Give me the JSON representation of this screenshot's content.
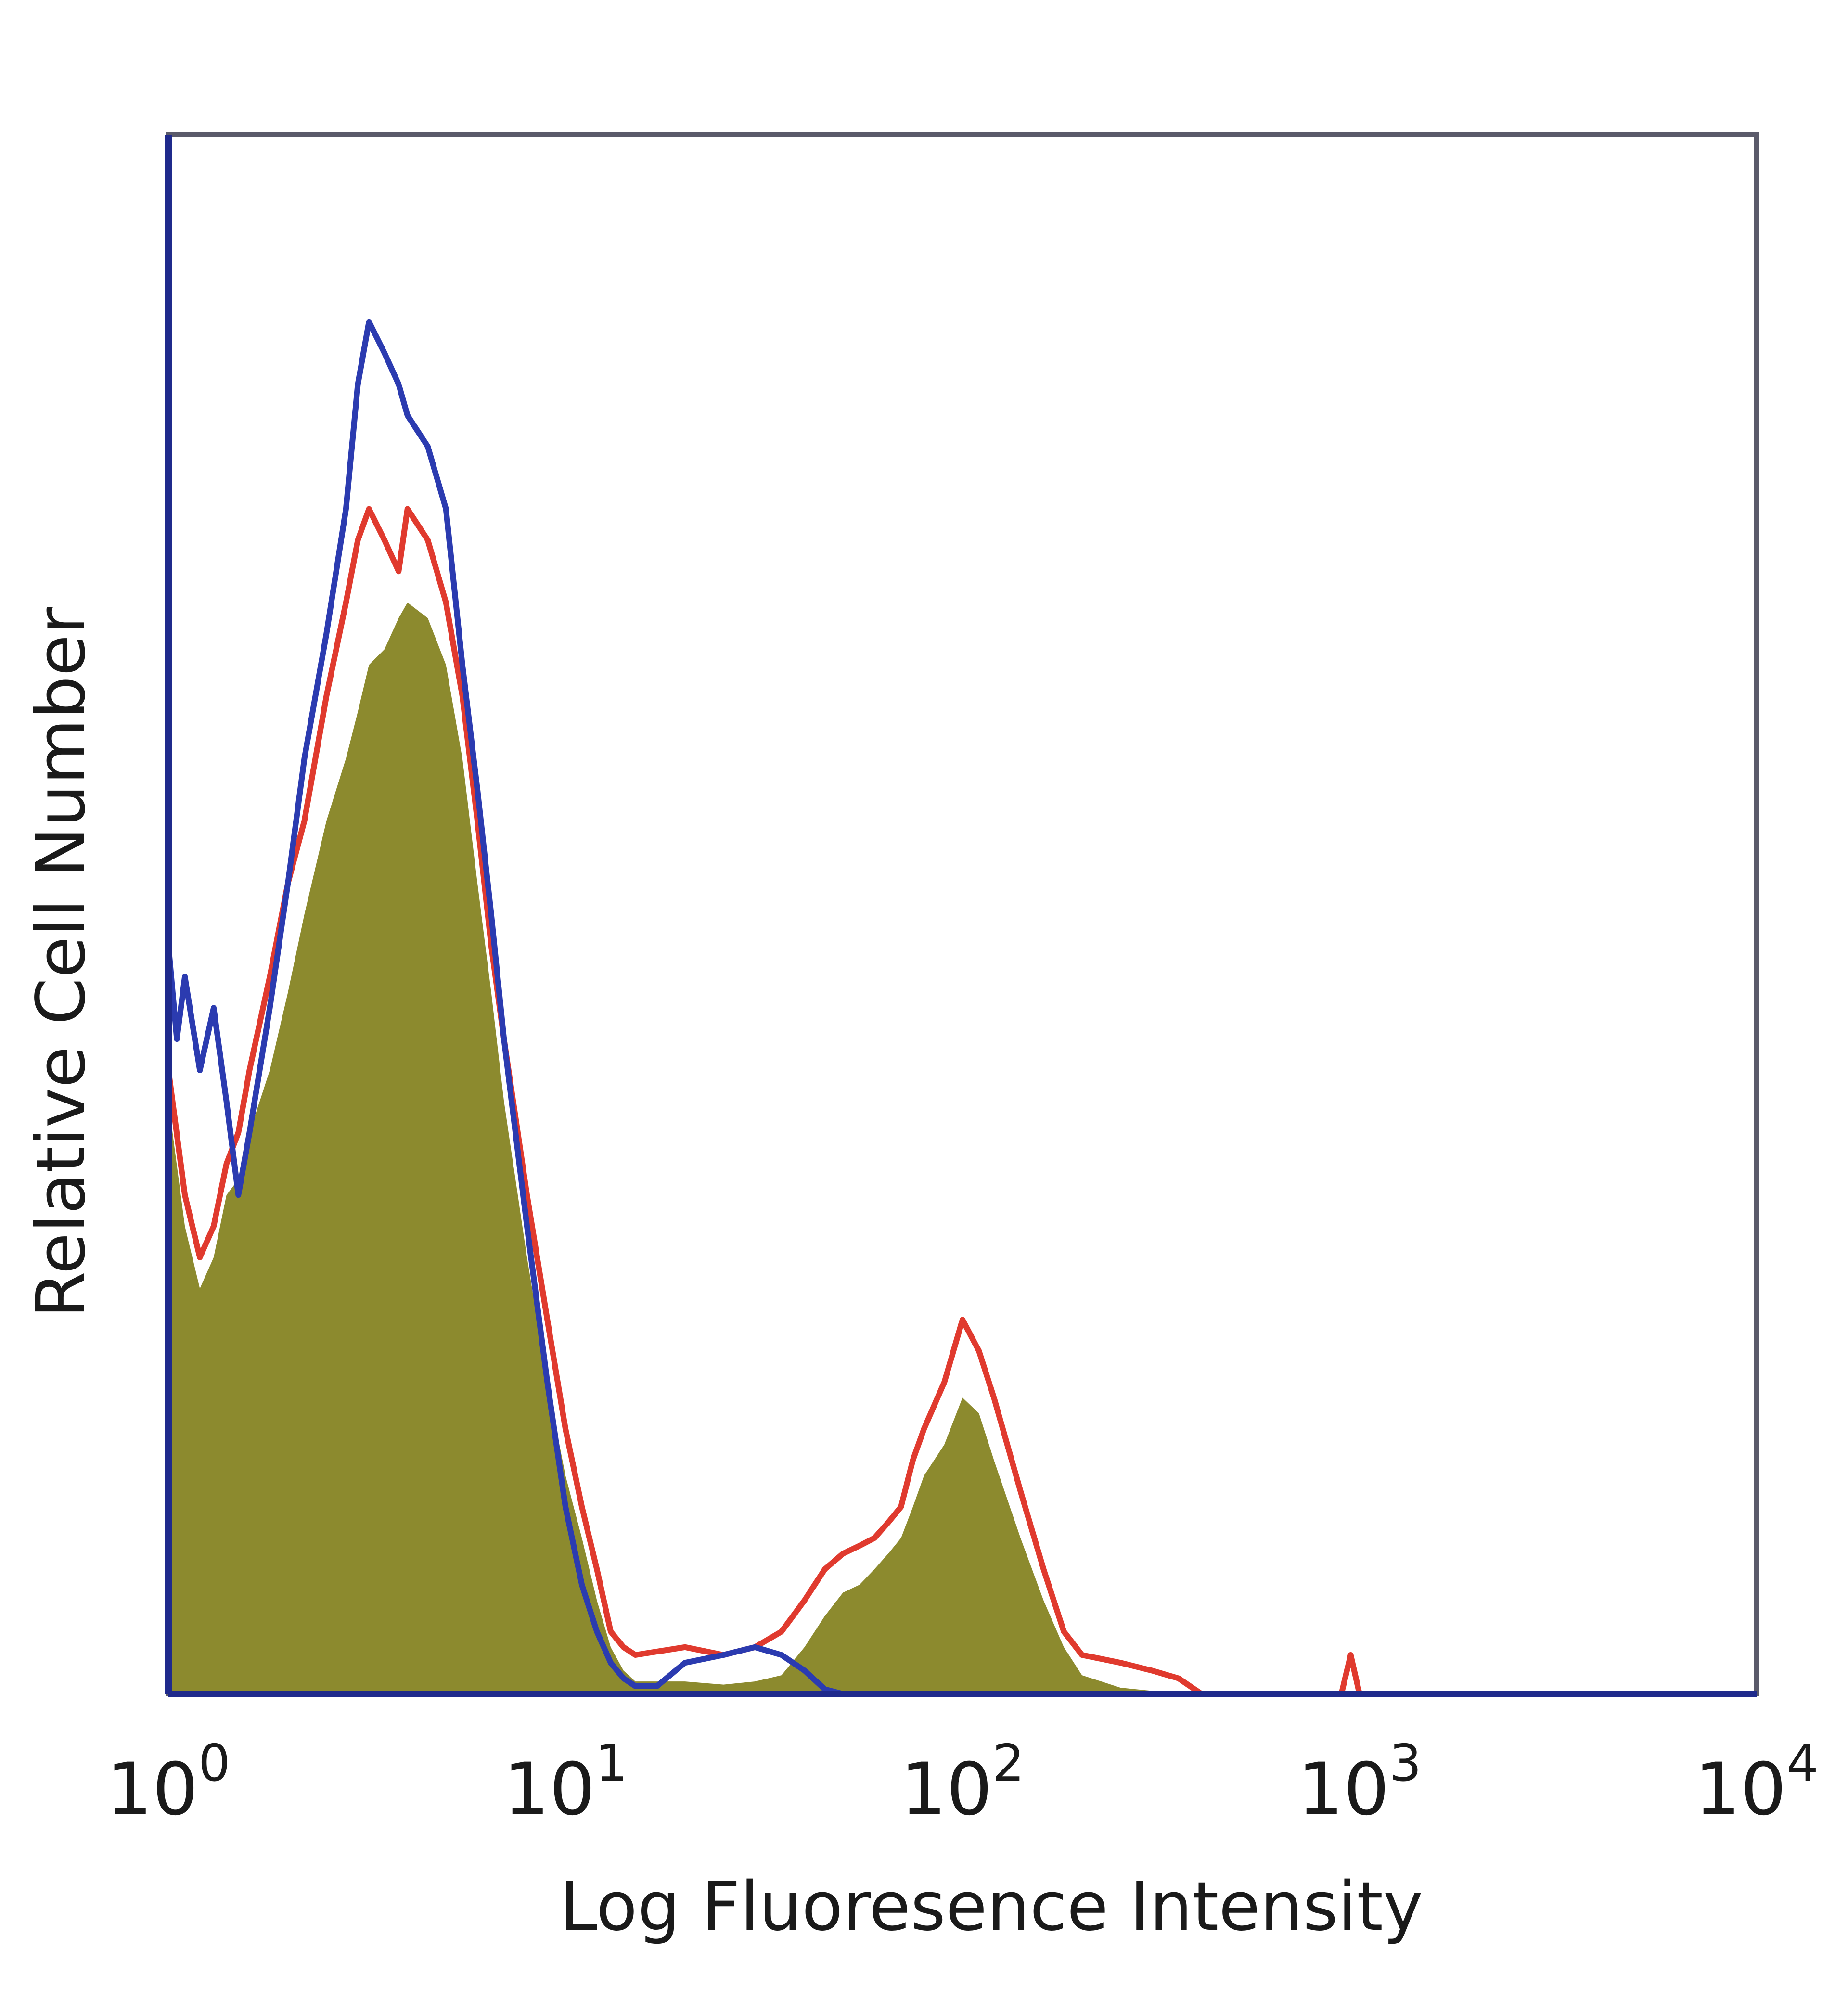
{
  "chart_data": {
    "type": "area",
    "title": "",
    "xlabel": "Log Fluoresence Intensity",
    "ylabel": "Relative Cell Number",
    "x_scale": "log",
    "xlim": [
      1,
      10000
    ],
    "ylim": [
      0,
      100
    ],
    "grid": false,
    "legend": "none",
    "x_ticks": [
      {
        "base": "10",
        "exp": "0",
        "value": 1
      },
      {
        "base": "10",
        "exp": "1",
        "value": 10
      },
      {
        "base": "10",
        "exp": "2",
        "value": 100
      },
      {
        "base": "10",
        "exp": "3",
        "value": 1000
      },
      {
        "base": "10",
        "exp": "4",
        "value": 10000
      }
    ],
    "series": [
      {
        "color": "#8c8a2e",
        "style": "filled",
        "points": [
          [
            1,
            38
          ],
          [
            1.1,
            30
          ],
          [
            1.2,
            26
          ],
          [
            1.3,
            28
          ],
          [
            1.4,
            32
          ],
          [
            1.5,
            33
          ],
          [
            1.6,
            36
          ],
          [
            1.8,
            40
          ],
          [
            2,
            45
          ],
          [
            2.2,
            50
          ],
          [
            2.5,
            56
          ],
          [
            2.8,
            60
          ],
          [
            3,
            63
          ],
          [
            3.2,
            66
          ],
          [
            3.5,
            67
          ],
          [
            3.8,
            69
          ],
          [
            4,
            70
          ],
          [
            4.5,
            69
          ],
          [
            5,
            66
          ],
          [
            5.5,
            60
          ],
          [
            6,
            52
          ],
          [
            6.5,
            45
          ],
          [
            7,
            38
          ],
          [
            8,
            28
          ],
          [
            9,
            20
          ],
          [
            10,
            14
          ],
          [
            11,
            10
          ],
          [
            12,
            6
          ],
          [
            13,
            3
          ],
          [
            14,
            1.5
          ],
          [
            15,
            0.8
          ],
          [
            20,
            0.8
          ],
          [
            25,
            0.6
          ],
          [
            30,
            0.8
          ],
          [
            35,
            1.2
          ],
          [
            40,
            3
          ],
          [
            45,
            5
          ],
          [
            50,
            6.5
          ],
          [
            55,
            7
          ],
          [
            60,
            8
          ],
          [
            65,
            9
          ],
          [
            70,
            10
          ],
          [
            75,
            12
          ],
          [
            80,
            14
          ],
          [
            90,
            16
          ],
          [
            100,
            19
          ],
          [
            110,
            18
          ],
          [
            120,
            15
          ],
          [
            140,
            10
          ],
          [
            160,
            6
          ],
          [
            180,
            3
          ],
          [
            200,
            1.2
          ],
          [
            250,
            0.4
          ],
          [
            300,
            0.2
          ],
          [
            400,
            0
          ],
          [
            10000,
            0
          ]
        ]
      },
      {
        "color": "#e03a2e",
        "style": "outline",
        "points": [
          [
            1,
            40
          ],
          [
            1.1,
            32
          ],
          [
            1.2,
            28
          ],
          [
            1.3,
            30
          ],
          [
            1.4,
            34
          ],
          [
            1.5,
            36
          ],
          [
            1.6,
            40
          ],
          [
            1.8,
            46
          ],
          [
            2,
            52
          ],
          [
            2.2,
            56
          ],
          [
            2.5,
            64
          ],
          [
            2.8,
            70
          ],
          [
            3,
            74
          ],
          [
            3.2,
            76
          ],
          [
            3.5,
            74
          ],
          [
            3.8,
            72
          ],
          [
            4,
            76
          ],
          [
            4.5,
            74
          ],
          [
            5,
            70
          ],
          [
            5.5,
            64
          ],
          [
            6,
            56
          ],
          [
            6.5,
            48
          ],
          [
            7,
            42
          ],
          [
            8,
            32
          ],
          [
            9,
            24
          ],
          [
            10,
            17
          ],
          [
            11,
            12
          ],
          [
            12,
            8
          ],
          [
            13,
            4
          ],
          [
            14,
            3
          ],
          [
            15,
            2.5
          ],
          [
            20,
            3
          ],
          [
            25,
            2.5
          ],
          [
            30,
            3
          ],
          [
            35,
            4
          ],
          [
            40,
            6
          ],
          [
            45,
            8
          ],
          [
            50,
            9
          ],
          [
            55,
            9.5
          ],
          [
            60,
            10
          ],
          [
            65,
            11
          ],
          [
            70,
            12
          ],
          [
            75,
            15
          ],
          [
            80,
            17
          ],
          [
            90,
            20
          ],
          [
            100,
            24
          ],
          [
            110,
            22
          ],
          [
            120,
            19
          ],
          [
            140,
            13
          ],
          [
            160,
            8
          ],
          [
            180,
            4
          ],
          [
            200,
            2.5
          ],
          [
            250,
            2
          ],
          [
            300,
            1.5
          ],
          [
            350,
            1
          ],
          [
            400,
            0
          ],
          [
            900,
            0
          ],
          [
            950,
            2.5
          ],
          [
            1000,
            0
          ],
          [
            10000,
            0
          ]
        ]
      },
      {
        "color": "#2b3bb0",
        "style": "outline",
        "points": [
          [
            1,
            48
          ],
          [
            1.05,
            42
          ],
          [
            1.1,
            46
          ],
          [
            1.2,
            40
          ],
          [
            1.3,
            44
          ],
          [
            1.4,
            38
          ],
          [
            1.5,
            32
          ],
          [
            1.6,
            36
          ],
          [
            1.8,
            44
          ],
          [
            2,
            52
          ],
          [
            2.2,
            60
          ],
          [
            2.5,
            68
          ],
          [
            2.8,
            76
          ],
          [
            3,
            84
          ],
          [
            3.2,
            88
          ],
          [
            3.5,
            86
          ],
          [
            3.8,
            84
          ],
          [
            4,
            82
          ],
          [
            4.5,
            80
          ],
          [
            5,
            76
          ],
          [
            5.5,
            66
          ],
          [
            6,
            58
          ],
          [
            6.5,
            50
          ],
          [
            7,
            42
          ],
          [
            8,
            30
          ],
          [
            9,
            20
          ],
          [
            10,
            12
          ],
          [
            11,
            7
          ],
          [
            12,
            4
          ],
          [
            13,
            2
          ],
          [
            14,
            1
          ],
          [
            15,
            0.5
          ],
          [
            17,
            0.5
          ],
          [
            20,
            2
          ],
          [
            25,
            2.5
          ],
          [
            30,
            3
          ],
          [
            35,
            2.5
          ],
          [
            40,
            1.5
          ],
          [
            45,
            0.3
          ],
          [
            50,
            0
          ],
          [
            10000,
            0
          ]
        ]
      }
    ]
  }
}
